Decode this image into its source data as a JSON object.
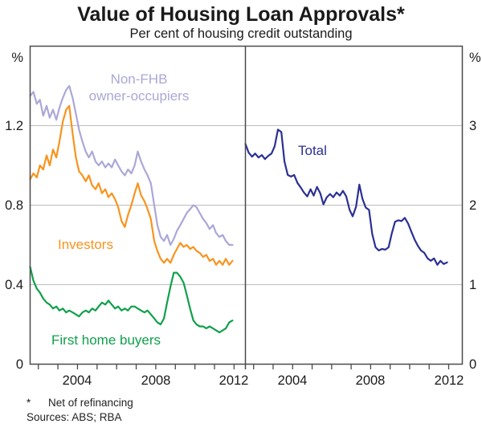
{
  "header": {
    "title": "Value of Housing Loan Approvals*",
    "subtitle": "Per cent of housing credit outstanding"
  },
  "footnotes": {
    "symbol": "*",
    "note": "Net of refinancing",
    "sources": "Sources: ABS; RBA"
  },
  "colors": {
    "non_fhb": "#ABA7D8",
    "investors": "#F7941E",
    "first_home_buyers": "#10A04B",
    "total": "#2B3094",
    "gridline": "#BDBDBD",
    "frame": "#4A4A4A"
  },
  "chart_data": {
    "type": "line",
    "title": "Value of Housing Loan Approvals*",
    "subtitle": "Per cent of housing credit outstanding",
    "grid": "horizontal-on",
    "panels": [
      {
        "side": "left",
        "unit": "%",
        "ylim": [
          0,
          1.6
        ],
        "yticks": [
          {
            "v": 0,
            "label": "0"
          },
          {
            "v": 0.4,
            "label": "0.4"
          },
          {
            "v": 0.8,
            "label": "0.8"
          },
          {
            "v": 1.2,
            "label": "1.2"
          }
        ],
        "x_domain": [
          2001.58,
          2012.58
        ],
        "year_ticks": [
          2002,
          2003,
          2004,
          2005,
          2006,
          2007,
          2008,
          2009,
          2010,
          2011,
          2012
        ],
        "xtick_labels": [
          {
            "year": 2004,
            "label": "2004"
          },
          {
            "year": 2008,
            "label": "2008"
          },
          {
            "year": 2012,
            "label": "2012"
          }
        ]
      },
      {
        "side": "right",
        "unit": "%",
        "ylim": [
          0,
          4
        ],
        "yticks": [
          {
            "v": 0,
            "label": "0"
          },
          {
            "v": 1,
            "label": "1"
          },
          {
            "v": 2,
            "label": "2"
          },
          {
            "v": 3,
            "label": "3"
          }
        ],
        "x_domain": [
          2001.58,
          2012.7
        ],
        "year_ticks": [
          2002,
          2003,
          2004,
          2005,
          2006,
          2007,
          2008,
          2009,
          2010,
          2011,
          2012
        ],
        "xtick_labels": [
          {
            "year": 2004,
            "label": "2004"
          },
          {
            "year": 2008,
            "label": "2008"
          },
          {
            "year": 2012,
            "label": "2012"
          }
        ]
      }
    ],
    "x": [
      2001.58,
      2001.75,
      2001.92,
      2002.08,
      2002.25,
      2002.42,
      2002.58,
      2002.75,
      2002.92,
      2003.08,
      2003.25,
      2003.42,
      2003.58,
      2003.75,
      2003.92,
      2004.08,
      2004.25,
      2004.42,
      2004.58,
      2004.75,
      2004.92,
      2005.08,
      2005.25,
      2005.42,
      2005.58,
      2005.75,
      2005.92,
      2006.08,
      2006.25,
      2006.42,
      2006.58,
      2006.75,
      2006.92,
      2007.08,
      2007.25,
      2007.42,
      2007.58,
      2007.75,
      2007.92,
      2008.08,
      2008.25,
      2008.42,
      2008.58,
      2008.75,
      2008.92,
      2009.08,
      2009.25,
      2009.42,
      2009.58,
      2009.75,
      2009.92,
      2010.08,
      2010.25,
      2010.42,
      2010.58,
      2010.75,
      2010.92,
      2011.08,
      2011.25,
      2011.42,
      2011.58,
      2011.75,
      2011.92
    ],
    "series": [
      {
        "name": "Non-FHB owner-occupiers",
        "label_lines": [
          "Non-FHB",
          "owner-occupiers"
        ],
        "panel": 0,
        "color": "#ABA7D8",
        "values": [
          1.35,
          1.37,
          1.31,
          1.33,
          1.25,
          1.3,
          1.24,
          1.28,
          1.23,
          1.29,
          1.34,
          1.38,
          1.4,
          1.34,
          1.26,
          1.18,
          1.12,
          1.07,
          1.04,
          1.07,
          1.02,
          1.0,
          1.02,
          0.99,
          1.01,
          0.99,
          1.03,
          1.0,
          0.97,
          0.95,
          0.98,
          0.96,
          1.0,
          1.07,
          1.02,
          0.98,
          0.95,
          0.91,
          0.8,
          0.7,
          0.64,
          0.62,
          0.65,
          0.6,
          0.63,
          0.67,
          0.7,
          0.73,
          0.76,
          0.78,
          0.8,
          0.79,
          0.76,
          0.73,
          0.71,
          0.68,
          0.7,
          0.66,
          0.64,
          0.65,
          0.62,
          0.6,
          0.6
        ]
      },
      {
        "name": "Investors",
        "label_lines": [
          "Investors"
        ],
        "panel": 0,
        "color": "#F7941E",
        "values": [
          0.93,
          0.96,
          0.94,
          1.0,
          0.98,
          1.05,
          1.0,
          1.08,
          1.04,
          1.12,
          1.22,
          1.28,
          1.3,
          1.16,
          1.04,
          0.97,
          0.95,
          0.92,
          0.95,
          0.9,
          0.88,
          0.91,
          0.86,
          0.88,
          0.84,
          0.86,
          0.83,
          0.79,
          0.72,
          0.69,
          0.75,
          0.8,
          0.86,
          0.91,
          0.85,
          0.82,
          0.78,
          0.73,
          0.62,
          0.57,
          0.53,
          0.51,
          0.53,
          0.51,
          0.55,
          0.58,
          0.61,
          0.59,
          0.6,
          0.58,
          0.59,
          0.57,
          0.56,
          0.54,
          0.55,
          0.52,
          0.53,
          0.5,
          0.52,
          0.5,
          0.53,
          0.5,
          0.52
        ]
      },
      {
        "name": "First home buyers",
        "label_lines": [
          "First home buyers"
        ],
        "panel": 0,
        "color": "#10A04B",
        "values": [
          0.49,
          0.42,
          0.38,
          0.36,
          0.33,
          0.31,
          0.3,
          0.28,
          0.29,
          0.27,
          0.28,
          0.26,
          0.27,
          0.26,
          0.25,
          0.24,
          0.26,
          0.27,
          0.26,
          0.28,
          0.27,
          0.29,
          0.31,
          0.3,
          0.32,
          0.3,
          0.28,
          0.29,
          0.27,
          0.28,
          0.27,
          0.29,
          0.29,
          0.28,
          0.27,
          0.26,
          0.27,
          0.25,
          0.23,
          0.21,
          0.2,
          0.23,
          0.31,
          0.39,
          0.46,
          0.46,
          0.44,
          0.41,
          0.35,
          0.28,
          0.22,
          0.2,
          0.19,
          0.19,
          0.18,
          0.19,
          0.18,
          0.17,
          0.16,
          0.17,
          0.18,
          0.21,
          0.22
        ]
      },
      {
        "name": "Total",
        "label_lines": [
          "Total"
        ],
        "panel": 1,
        "color": "#2B3094",
        "values": [
          2.77,
          2.66,
          2.61,
          2.65,
          2.6,
          2.63,
          2.58,
          2.62,
          2.65,
          2.74,
          2.95,
          2.92,
          2.55,
          2.38,
          2.36,
          2.38,
          2.28,
          2.22,
          2.16,
          2.11,
          2.2,
          2.12,
          2.23,
          2.15,
          2.01,
          2.1,
          2.14,
          2.1,
          2.16,
          2.12,
          2.18,
          2.11,
          1.94,
          1.86,
          1.98,
          2.26,
          2.08,
          1.97,
          1.94,
          1.64,
          1.47,
          1.43,
          1.45,
          1.44,
          1.47,
          1.64,
          1.79,
          1.81,
          1.8,
          1.84,
          1.77,
          1.67,
          1.57,
          1.49,
          1.43,
          1.4,
          1.33,
          1.3,
          1.33,
          1.25,
          1.3,
          1.26,
          1.28
        ]
      }
    ]
  }
}
